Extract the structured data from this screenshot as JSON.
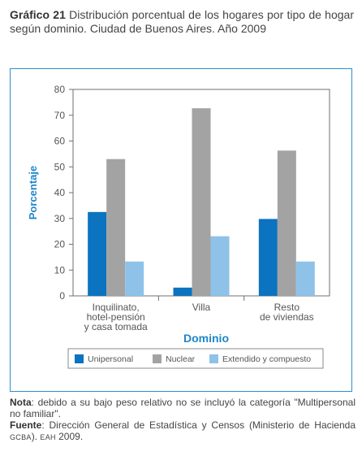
{
  "header": {
    "label": "Gráfico 21",
    "text": "Distribución porcentual de los hogares por tipo de hogar según dominio. Ciudad de Buenos Aires. Año 2009"
  },
  "chart_data": {
    "type": "bar",
    "categories": [
      [
        "Inquilinato,",
        "hotel-pensión",
        "y casa tomada"
      ],
      [
        "Villa"
      ],
      [
        "Resto",
        "de viviendas"
      ]
    ],
    "series": [
      {
        "name": "Unipersonal",
        "color": "#0b73bf",
        "values": [
          32.5,
          3.2,
          29.8
        ]
      },
      {
        "name": "Nuclear",
        "color": "#a3a3a3",
        "values": [
          53.0,
          72.7,
          56.3
        ]
      },
      {
        "name": "Extendido y compuesto",
        "color": "#8ec2e8",
        "values": [
          13.3,
          23.1,
          13.3
        ]
      }
    ],
    "xlabel": "Dominio",
    "ylabel": "Porcentaje",
    "ylim": [
      0,
      80
    ],
    "yticks": [
      0,
      10,
      20,
      30,
      40,
      50,
      60,
      70,
      80
    ],
    "grid": false,
    "legend": "bottom"
  },
  "notes": {
    "nota_label": "Nota",
    "nota_text": ": debido a su bajo peso relativo no se incluyó la categoría \"Multipersonal no familiar\".",
    "fuente_label": "Fuente",
    "fuente_text1": ": Dirección General de Estadística y Censos (Ministerio de Hacienda ",
    "fuente_small1": "GCBA",
    "fuente_text2": "). ",
    "fuente_small2": "EAH",
    "fuente_text3": " 2009."
  }
}
